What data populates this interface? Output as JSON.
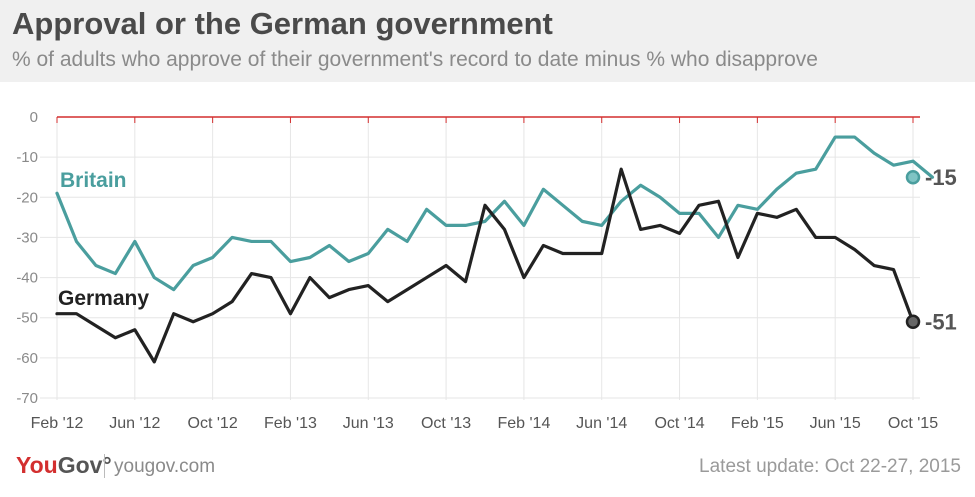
{
  "header": {
    "title": "Approval or the German government",
    "subtitle": "% of adults who approve of their government's record to date minus % who disapprove"
  },
  "footer": {
    "logo_you": "You",
    "logo_gov": "Gov",
    "logo_mark": "°",
    "url": "yougov.com",
    "update": "Latest update: Oct 22-27, 2015"
  },
  "colors": {
    "britain": "#4a9e9e",
    "germany": "#222222",
    "zero_line": "#d32f2f",
    "grid": "#e6e6e6",
    "axis_text": "#8a8a8a"
  },
  "chart_data": {
    "type": "line",
    "x_ticks": [
      "Feb '12",
      "Jun '12",
      "Oct '12",
      "Feb '13",
      "Jun '13",
      "Oct '13",
      "Feb '14",
      "Jun '14",
      "Oct '14",
      "Feb '15",
      "Jun '15",
      "Oct '15"
    ],
    "x_range": [
      "Feb 2012",
      "Oct 2015"
    ],
    "y_ticks": [
      0,
      -10,
      -20,
      -30,
      -40,
      -50,
      -60,
      -70
    ],
    "ylim": [
      -70,
      0
    ],
    "grid": true,
    "series": [
      {
        "name": "Britain",
        "end_label": "-15",
        "values": [
          -19,
          -31,
          -37,
          -39,
          -31,
          -40,
          -43,
          -37,
          -35,
          -30,
          -31,
          -31,
          -36,
          -35,
          -32,
          -36,
          -34,
          -28,
          -31,
          -23,
          -27,
          -27,
          -26,
          -21,
          -27,
          -18,
          -22,
          -26,
          -27,
          -21,
          -17,
          -20,
          -24,
          -24,
          -30,
          -22,
          -23,
          -18,
          -14,
          -13,
          -5,
          -5,
          -9,
          -12,
          -11,
          -15
        ]
      },
      {
        "name": "Germany",
        "end_label": "-51",
        "values": [
          -49,
          -49,
          -52,
          -55,
          -53,
          -61,
          -49,
          -51,
          -49,
          -46,
          -39,
          -40,
          -49,
          -40,
          -45,
          -43,
          -42,
          -46,
          -43,
          -40,
          -37,
          -41,
          -22,
          -28,
          -40,
          -32,
          -34,
          -34,
          -34,
          -13,
          -28,
          -27,
          -29,
          -22,
          -21,
          -35,
          -24,
          -25,
          -23,
          -30,
          -30,
          -33,
          -37,
          -38,
          -51
        ]
      }
    ]
  }
}
